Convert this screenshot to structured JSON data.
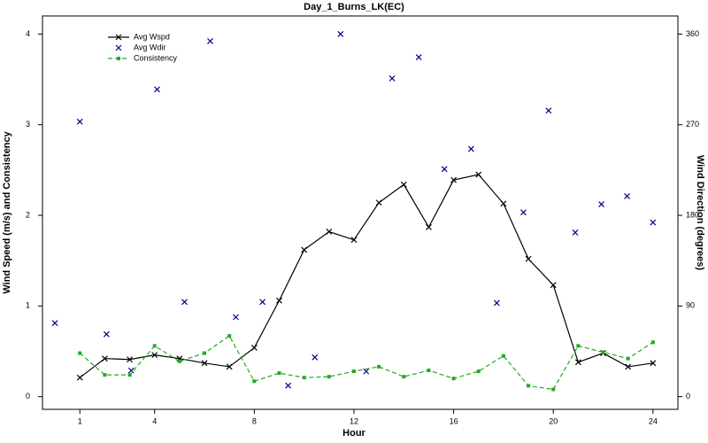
{
  "chart_data": {
    "type": "line",
    "title": "Day_1_Burns_LK(EC)",
    "x_label": "Hour",
    "y_label": "Wind Speed (m/s) and Consistency",
    "y2_label": "Wind Direction (degrees)",
    "xlim": [
      -0.5,
      25
    ],
    "xticks": [
      1,
      4,
      8,
      12,
      16,
      20,
      24
    ],
    "ylim": [
      -0.14,
      4.2
    ],
    "yticks": [
      0,
      1,
      2,
      3,
      4
    ],
    "y2lim": [
      -12.6,
      378
    ],
    "y2ticks": [
      0,
      90,
      180,
      270,
      360
    ],
    "legend": "top-left",
    "series": [
      {
        "name": "Avg Wspd",
        "color": "#000000",
        "style": "line",
        "x": [
          1,
          2,
          3,
          4,
          5,
          6,
          7,
          8,
          9,
          10,
          11,
          12,
          13,
          14,
          15,
          16,
          17,
          18,
          19,
          20,
          21,
          22,
          23,
          24
        ],
        "values": [
          0.21,
          0.42,
          0.41,
          0.46,
          0.42,
          0.37,
          0.33,
          0.54,
          1.06,
          1.62,
          1.82,
          1.73,
          2.14,
          2.34,
          1.87,
          2.39,
          2.45,
          2.13,
          1.52,
          1.23,
          0.38,
          0.48,
          0.33,
          0.37
        ]
      },
      {
        "name": "Avg Wdir",
        "color": "#00008b",
        "style": "points",
        "axis": "y2",
        "x": [
          0,
          1,
          2.07,
          3.06,
          4.1,
          5.2,
          6.23,
          7.26,
          8.33,
          9.36,
          10.43,
          11.46,
          12.49,
          13.53,
          14.6,
          15.63,
          16.7,
          17.73,
          18.8,
          19.81,
          20.88,
          21.93,
          22.96,
          24
        ],
        "values": [
          73,
          273,
          62,
          26,
          305,
          94,
          353,
          79,
          94,
          11,
          39,
          360,
          25,
          316,
          337,
          226,
          246,
          93,
          183,
          284,
          163,
          191,
          199,
          173
        ]
      },
      {
        "name": "Consistency",
        "color": "#22aa22",
        "style": "dashed",
        "x": [
          1,
          2,
          3,
          4,
          5,
          6,
          7,
          8,
          9,
          10,
          11,
          12,
          13,
          14,
          15,
          16,
          17,
          18,
          19,
          20,
          21,
          22,
          23,
          24
        ],
        "values": [
          0.48,
          0.24,
          0.24,
          0.56,
          0.39,
          0.48,
          0.67,
          0.17,
          0.26,
          0.21,
          0.22,
          0.28,
          0.33,
          0.22,
          0.29,
          0.2,
          0.28,
          0.45,
          0.12,
          0.08,
          0.56,
          0.49,
          0.42,
          0.6
        ]
      }
    ]
  }
}
